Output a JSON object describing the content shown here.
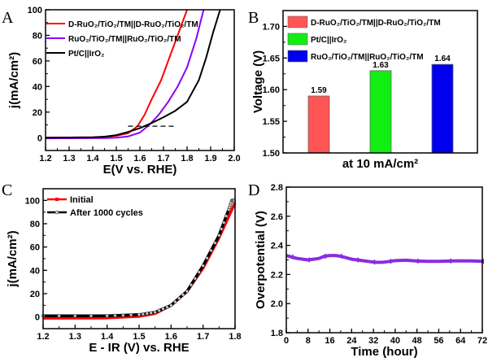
{
  "chart_data": [
    {
      "panel": "A",
      "type": "line",
      "xlabel": "E(V vs. RHE)",
      "ylabel": "j(mA/cm²)",
      "xlim": [
        1.2,
        2.0
      ],
      "ylim": [
        -10,
        100
      ],
      "xticks": [
        1.2,
        1.3,
        1.4,
        1.5,
        1.6,
        1.7,
        1.8,
        1.9,
        2.0
      ],
      "yticks": [
        0,
        20,
        40,
        60,
        80,
        100
      ],
      "legend": "top-left",
      "series": [
        {
          "name": "D-RuO₂/TiO₂/TM||D-RuO₂/TiO₂/TM",
          "color": "#ff0000",
          "x": [
            1.2,
            1.4,
            1.45,
            1.5,
            1.55,
            1.59,
            1.62,
            1.65,
            1.69,
            1.72,
            1.76,
            1.8
          ],
          "y": [
            0,
            0.3,
            0.6,
            1.5,
            3.5,
            9,
            18,
            30,
            45,
            60,
            80,
            100
          ]
        },
        {
          "name": "RuO₂/TiO₂/TM||RuO₂/TiO₂/TM",
          "color": "#8b00ff",
          "x": [
            1.2,
            1.45,
            1.5,
            1.55,
            1.6,
            1.64,
            1.68,
            1.72,
            1.76,
            1.8,
            1.84,
            1.87
          ],
          "y": [
            -0.5,
            -0.3,
            0,
            1,
            4,
            10,
            18,
            28,
            40,
            55,
            78,
            100
          ]
        },
        {
          "name": "Pt/C||IrO₂",
          "color": "#000000",
          "x": [
            1.2,
            1.4,
            1.45,
            1.5,
            1.55,
            1.6,
            1.65,
            1.7,
            1.75,
            1.8,
            1.85,
            1.88,
            1.91,
            1.94
          ],
          "y": [
            0,
            0.3,
            0.8,
            2,
            4.5,
            7.5,
            11.5,
            16,
            21,
            28,
            45,
            62,
            82,
            100
          ]
        }
      ],
      "reference_line": {
        "y": 9,
        "x": [
          1.55,
          1.75
        ],
        "style": "dashed"
      }
    },
    {
      "panel": "B",
      "type": "bar",
      "xlabel": "at 10 mA/cm²",
      "ylabel": "Voltage (V)",
      "ylim": [
        1.5,
        1.725
      ],
      "yticks": [
        1.5,
        1.55,
        1.6,
        1.65,
        1.7
      ],
      "legend": "top-left",
      "categories": [
        "D-RuO₂/TiO₂/TM||D-RuO₂/TiO₂/TM",
        "Pt/C||IrO₂",
        "RuO₂/TiO₂/TM||RuO₂/TiO₂/TM"
      ],
      "values": [
        1.59,
        1.63,
        1.64
      ],
      "data_labels": [
        "1.59",
        "1.63",
        "1.64"
      ],
      "colors": [
        "#ff5555",
        "#11ee11",
        "#0000ee"
      ]
    },
    {
      "panel": "C",
      "type": "line",
      "xlabel": "E - IR (V) vs. RHE",
      "ylabel": "j(mA/cm²)",
      "xlim": [
        1.2,
        1.8
      ],
      "ylim": [
        -10,
        110
      ],
      "xticks": [
        1.2,
        1.3,
        1.4,
        1.5,
        1.6,
        1.7,
        1.8
      ],
      "yticks": [
        0,
        20,
        40,
        60,
        80,
        100
      ],
      "legend": "top-left",
      "series": [
        {
          "name": "Initial",
          "color": "#ff0000",
          "marker": "square",
          "x": [
            1.2,
            1.4,
            1.5,
            1.55,
            1.6,
            1.65,
            1.7,
            1.75,
            1.8
          ],
          "y": [
            -1,
            -0.8,
            0.5,
            3,
            10,
            22,
            42,
            68,
            98
          ]
        },
        {
          "name": "After 1000 cycles",
          "color": "#000000",
          "marker": "open-circle",
          "x": [
            1.2,
            1.4,
            1.5,
            1.55,
            1.6,
            1.65,
            1.7,
            1.75,
            1.78,
            1.79,
            1.8
          ],
          "y": [
            1,
            1,
            2,
            4,
            10,
            22,
            44,
            70,
            92,
            100,
            100
          ]
        }
      ]
    },
    {
      "panel": "D",
      "type": "line",
      "xlabel": "Time (hour)",
      "ylabel": "Overpotential (V)",
      "xlim": [
        0,
        72
      ],
      "ylim": [
        1.8,
        2.8
      ],
      "xticks": [
        0,
        8,
        16,
        24,
        32,
        40,
        48,
        56,
        64,
        72
      ],
      "yticks": [
        1.8,
        2.0,
        2.2,
        2.4,
        2.6,
        2.8
      ],
      "series": [
        {
          "color": "#8b2be2",
          "x": [
            0,
            2,
            4,
            6,
            8,
            10,
            12,
            14,
            16,
            18,
            20,
            22,
            24,
            26,
            28,
            30,
            32,
            34,
            36,
            38,
            40,
            44,
            48,
            52,
            56,
            60,
            64,
            68,
            72
          ],
          "y": [
            2.33,
            2.32,
            2.31,
            2.305,
            2.3,
            2.305,
            2.31,
            2.325,
            2.33,
            2.33,
            2.325,
            2.315,
            2.305,
            2.3,
            2.295,
            2.29,
            2.285,
            2.283,
            2.285,
            2.29,
            2.295,
            2.298,
            2.292,
            2.29,
            2.29,
            2.292,
            2.294,
            2.293,
            2.29
          ]
        }
      ]
    }
  ],
  "panel_labels": [
    "A",
    "B",
    "C",
    "D"
  ]
}
